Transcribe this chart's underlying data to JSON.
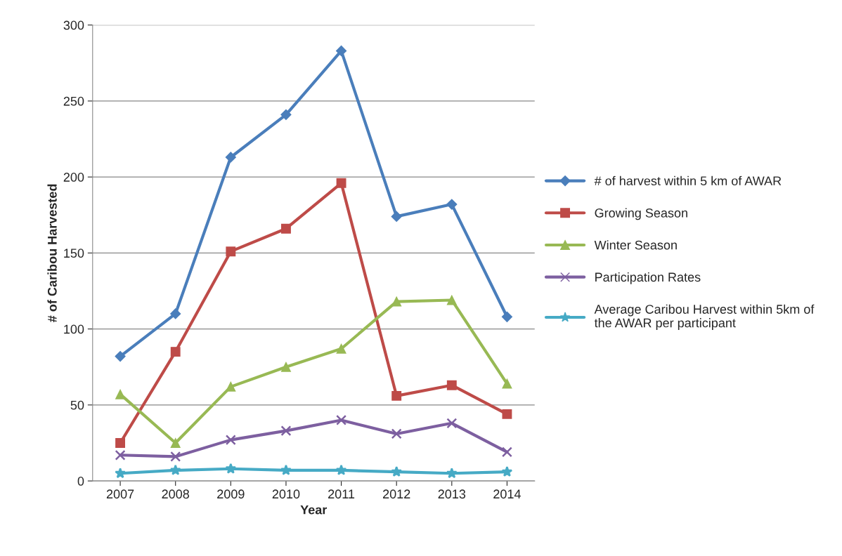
{
  "chart_data": {
    "type": "line",
    "xlabel": "Year",
    "ylabel": "# of Caribou Harvested",
    "categories": [
      "2007",
      "2008",
      "2009",
      "2010",
      "2011",
      "2012",
      "2013",
      "2014"
    ],
    "series": [
      {
        "name": "# of harvest within 5 km of AWAR",
        "color": "#4a7ebb",
        "marker": "diamond",
        "values": [
          82,
          110,
          213,
          241,
          283,
          174,
          182,
          108
        ]
      },
      {
        "name": "Growing Season",
        "color": "#be4b48",
        "marker": "square",
        "values": [
          25,
          85,
          151,
          166,
          196,
          56,
          63,
          44
        ]
      },
      {
        "name": "Winter Season",
        "color": "#98b954",
        "marker": "triangle",
        "values": [
          57,
          25,
          62,
          75,
          87,
          118,
          119,
          64
        ]
      },
      {
        "name": "Participation Rates",
        "color": "#7d5fa0",
        "marker": "cross",
        "values": [
          17,
          16,
          27,
          33,
          40,
          31,
          38,
          19
        ]
      },
      {
        "name": "Average Caribou Harvest within 5km of the AWAR per participant",
        "color": "#46aac5",
        "marker": "star",
        "values": [
          5,
          7,
          8,
          7,
          7,
          6,
          5,
          6
        ]
      }
    ],
    "ylim": [
      0,
      300
    ],
    "yticks": [
      0,
      50,
      100,
      150,
      200,
      250,
      300
    ],
    "grid": "y",
    "legend": "right"
  }
}
